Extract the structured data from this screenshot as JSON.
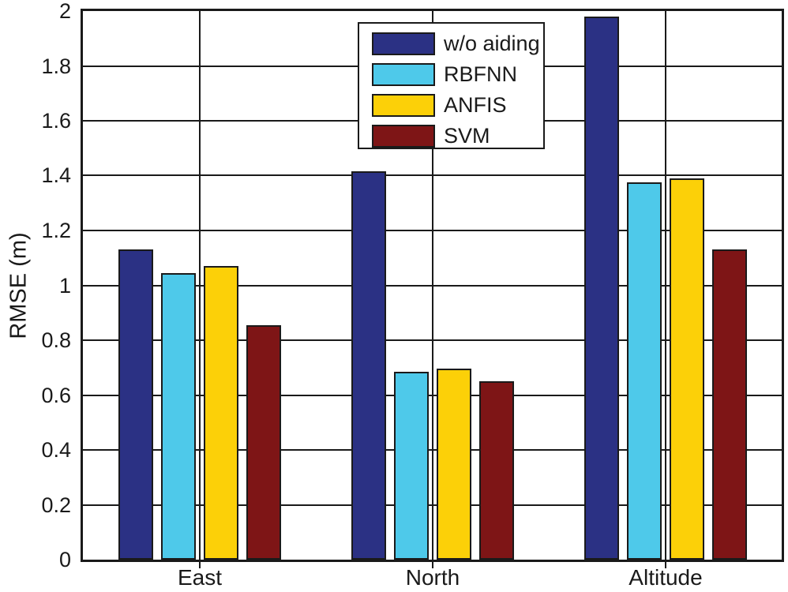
{
  "chart_data": {
    "type": "bar",
    "title": "",
    "xlabel": "",
    "ylabel": "RMSE (m)",
    "categories": [
      "East",
      "North",
      "Altitude"
    ],
    "series": [
      {
        "name": "w/o aiding",
        "color": "#2B3184",
        "values": [
          1.13,
          1.415,
          1.98
        ]
      },
      {
        "name": "RBFNN",
        "color": "#4EC9EA",
        "values": [
          1.045,
          0.685,
          1.375
        ]
      },
      {
        "name": "ANFIS",
        "color": "#FCD008",
        "values": [
          1.07,
          0.695,
          1.39
        ]
      },
      {
        "name": "SVM",
        "color": "#7E1516",
        "values": [
          0.855,
          0.65,
          1.13
        ]
      }
    ],
    "ylim": [
      0,
      2
    ],
    "ytick_step": 0.2,
    "yticks": [
      "0",
      "0.2",
      "0.4",
      "0.6",
      "0.8",
      "1",
      "1.2",
      "1.4",
      "1.6",
      "1.8",
      "2"
    ],
    "grid": true,
    "legend_position": "top-center",
    "axis_color": "#1A1A1A",
    "background_color": "#FFFFFF"
  }
}
